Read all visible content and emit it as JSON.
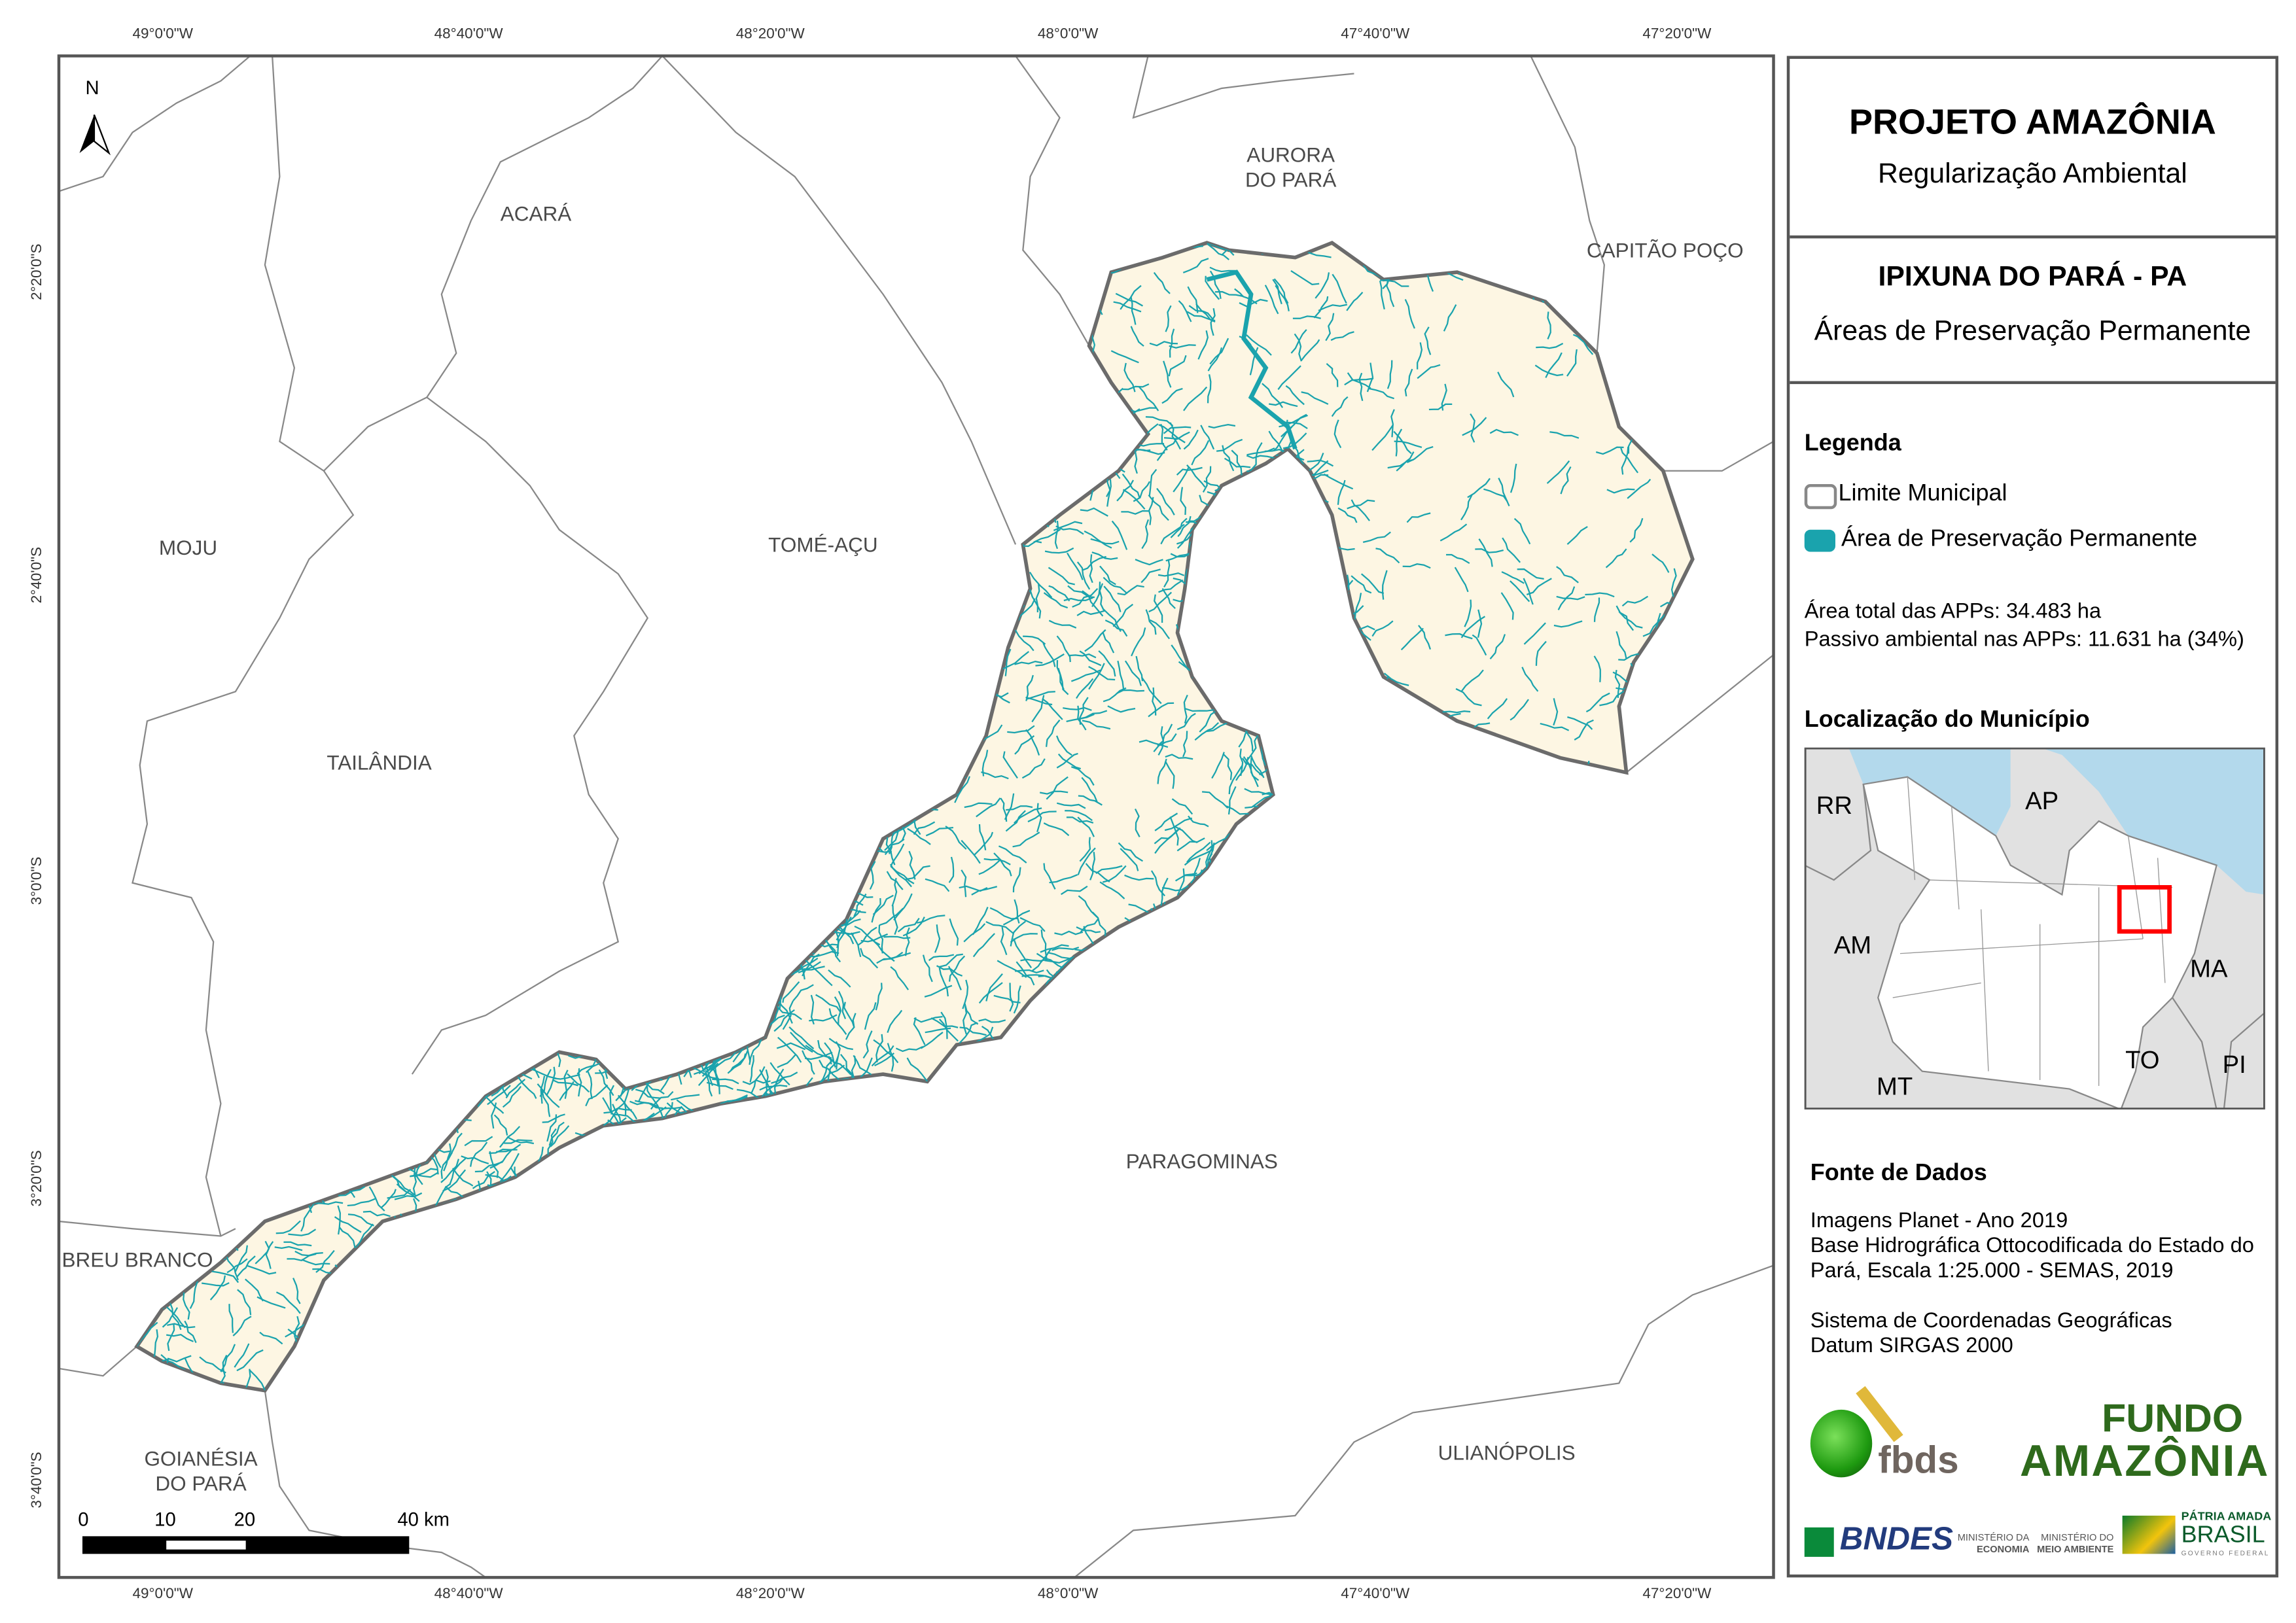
{
  "colors": {
    "municipality_fill": "#fdf6e3",
    "app_fill": "#1aa3ad",
    "boundary": "#888888",
    "outline": "#6b6b6b",
    "sea": "#b3d9ec",
    "neighbor_state": "#e1e1e1",
    "locator_box": "#ff0000"
  },
  "map": {
    "north_arrow": "N",
    "lon_ticks": [
      "49°0'0\"W",
      "48°40'0\"W",
      "48°20'0\"W",
      "48°0'0\"W",
      "47°40'0\"W",
      "47°20'0\"W"
    ],
    "lat_ticks": [
      "2°20'0\"S",
      "2°40'0\"S",
      "3°0'0\"S",
      "3°20'0\"S",
      "3°40'0\"S"
    ],
    "municipalities": [
      "ACARÁ",
      "AURORA\nDO PARÁ",
      "CAPITÃO POÇO",
      "MOJU",
      "TOMÉ-AÇU",
      "TAILÂNDIA",
      "PARAGOMINAS",
      "BREU BRANCO",
      "GOIANÉSIA\nDO PARÁ",
      "ULIANÓPOLIS"
    ],
    "scale_bar": {
      "labels": [
        "0",
        "10",
        "20",
        "40 km"
      ]
    }
  },
  "panel": {
    "title": "PROJETO AMAZÔNIA",
    "subtitle": "Regularização Ambiental",
    "municipality": "IPIXUNA DO PARÁ - PA",
    "theme": "Áreas de Preservação Permanente",
    "legend": {
      "title": "Legenda",
      "items": [
        {
          "label": "Limite Municipal",
          "icon": "outline-box"
        },
        {
          "label": "Área de Preservação Permanente",
          "icon": "teal-box"
        }
      ]
    },
    "stats": {
      "total": "Área total das APPs: 34.483 ha",
      "passivo": "Passivo ambiental nas APPs: 11.631 ha (34%)"
    },
    "locator": {
      "title": "Localização do Município",
      "states": [
        "RR",
        "AP",
        "AM",
        "MA",
        "TO",
        "PI",
        "MT"
      ]
    },
    "sources": {
      "title": "Fonte de Dados",
      "lines": [
        "Imagens Planet - Ano 2019",
        "Base Hidrográfica Ottocodificada do Estado do",
        "Pará, Escala 1:25.000 - SEMAS, 2019",
        "",
        "Sistema de Coordenadas Geográficas",
        "Datum SIRGAS 2000"
      ]
    },
    "logos": {
      "fbds": "fbds",
      "fundo1": "FUNDO",
      "fundo2": "AMAZÔNIA",
      "bndes": "BNDES",
      "min1a": "MINISTÉRIO DA",
      "min1b": "ECONOMIA",
      "min2a": "MINISTÉRIO DO",
      "min2b": "MEIO AMBIENTE",
      "patria": "PÁTRIA AMADA",
      "brasil": "BRASIL",
      "gov": "GOVERNO FEDERAL"
    }
  }
}
